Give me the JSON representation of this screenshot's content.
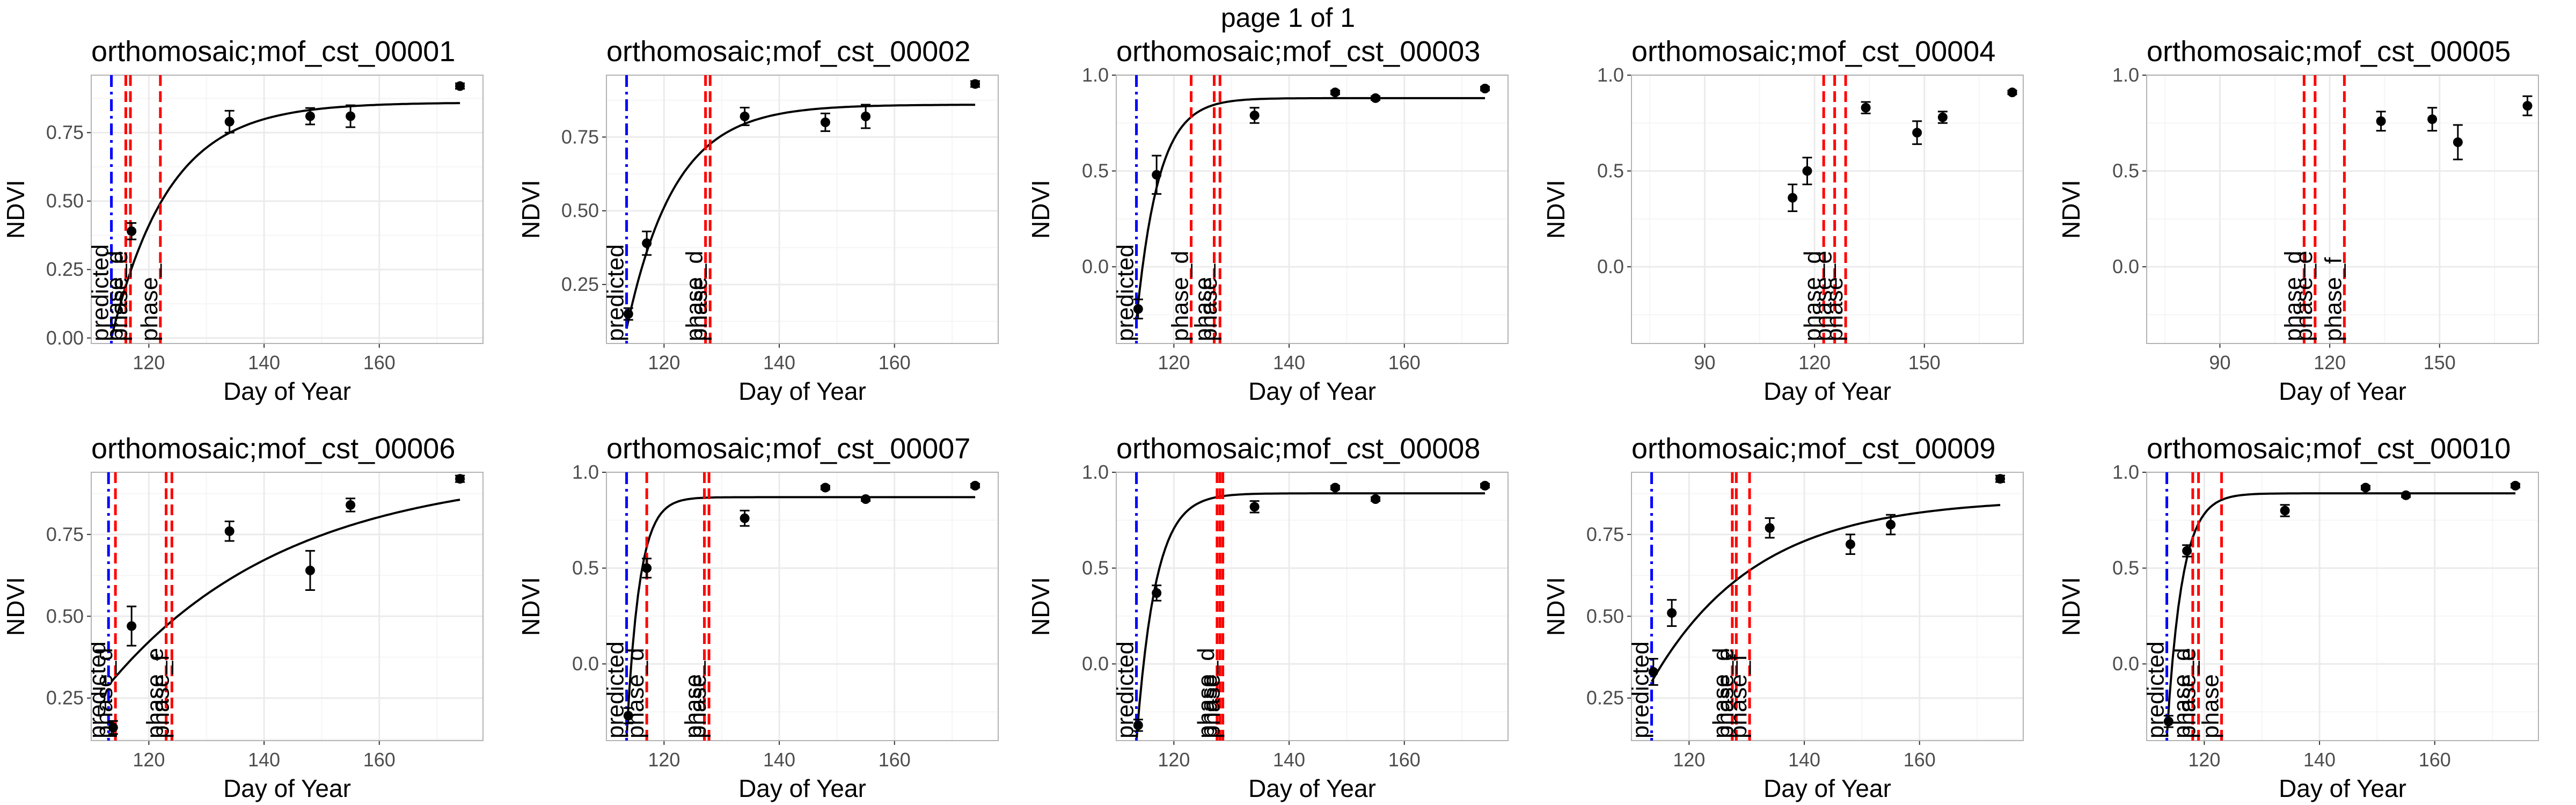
{
  "page": {
    "title": "page 1 of 1"
  },
  "colors": {
    "fit_curve": "#000000",
    "predicted_line": "#0000ff",
    "phase_line": "#ff0000",
    "points": "#000000",
    "grid_major": "#ebebeb",
    "grid_minor": "#f5f5f5",
    "panel_border": "#b3b3b3"
  },
  "chart_data": [
    {
      "type": "scatter",
      "title": "orthomosaic;mof_cst_00001",
      "xlabel": "Day of Year",
      "ylabel": "NDVI",
      "xlim": [
        110,
        178
      ],
      "ylim": [
        -0.02,
        0.96
      ],
      "xticks": [
        120,
        140,
        160
      ],
      "xtick_labels": [
        "120",
        "140",
        "160"
      ],
      "yticks": [
        0,
        0.25,
        0.5,
        0.75
      ],
      "ytick_labels": [
        "0.00",
        "0.25",
        "0.50",
        "0.75"
      ],
      "points": [
        {
          "x": 117,
          "y": 0.39,
          "err": 0.03
        },
        {
          "x": 134,
          "y": 0.79,
          "err": 0.04
        },
        {
          "x": 148,
          "y": 0.81,
          "err": 0.03
        },
        {
          "x": 155,
          "y": 0.81,
          "err": 0.04
        },
        {
          "x": 174,
          "y": 0.92,
          "err": 0.01
        }
      ],
      "fit": {
        "upper": 0.86,
        "rate": 0.1,
        "base": 0.0,
        "x0": 113.5,
        "xmax": 174
      },
      "vlines": [
        {
          "x": 113.5,
          "color": "#0000ff",
          "style": "dashdot",
          "label": "predicted"
        },
        {
          "x": 116,
          "color": "#ff0000",
          "style": "dashed",
          "label": "phase_d"
        },
        {
          "x": 116.8,
          "color": "#ff0000",
          "style": "dashed",
          "label": "phase_e"
        },
        {
          "x": 122,
          "color": "#ff0000",
          "style": "dashed",
          "label": "phase_"
        }
      ]
    },
    {
      "type": "scatter",
      "title": "orthomosaic;mof_cst_00002",
      "xlabel": "Day of Year",
      "ylabel": "NDVI",
      "xlim": [
        110,
        178
      ],
      "ylim": [
        0.05,
        0.96
      ],
      "xticks": [
        120,
        140,
        160
      ],
      "xtick_labels": [
        "120",
        "140",
        "160"
      ],
      "yticks": [
        0.25,
        0.5,
        0.75
      ],
      "ytick_labels": [
        "0.25",
        "0.50",
        "0.75"
      ],
      "points": [
        {
          "x": 113.8,
          "y": 0.15,
          "err": 0.02
        },
        {
          "x": 117,
          "y": 0.39,
          "err": 0.04
        },
        {
          "x": 134,
          "y": 0.82,
          "err": 0.03
        },
        {
          "x": 148,
          "y": 0.8,
          "err": 0.03
        },
        {
          "x": 155,
          "y": 0.82,
          "err": 0.04
        },
        {
          "x": 174,
          "y": 0.93,
          "err": 0.01
        }
      ],
      "fit": {
        "upper": 0.86,
        "rate": 0.12,
        "base": 0.1,
        "x0": 113.5,
        "xmax": 174
      },
      "vlines": [
        {
          "x": 113.5,
          "color": "#0000ff",
          "style": "dashdot",
          "label": "predicted"
        },
        {
          "x": 127.2,
          "color": "#ff0000",
          "style": "dashed",
          "label": "phase_d"
        },
        {
          "x": 128,
          "color": "#ff0000",
          "style": "dashed",
          "label": "phase"
        }
      ]
    },
    {
      "type": "scatter",
      "title": "orthomosaic;mof_cst_00003",
      "xlabel": "Day of Year",
      "ylabel": "NDVI",
      "xlim": [
        110,
        178
      ],
      "ylim": [
        -0.4,
        1.0
      ],
      "xticks": [
        120,
        140,
        160
      ],
      "xtick_labels": [
        "120",
        "140",
        "160"
      ],
      "yticks": [
        0,
        0.5,
        1.0
      ],
      "ytick_labels": [
        "0.0",
        "0.5",
        "1.0"
      ],
      "points": [
        {
          "x": 113.8,
          "y": -0.22,
          "err": 0.05
        },
        {
          "x": 117,
          "y": 0.48,
          "err": 0.1
        },
        {
          "x": 134,
          "y": 0.79,
          "err": 0.04
        },
        {
          "x": 148,
          "y": 0.91,
          "err": 0.01
        },
        {
          "x": 155,
          "y": 0.88,
          "err": 0.01
        },
        {
          "x": 174,
          "y": 0.93,
          "err": 0.01
        }
      ],
      "fit": {
        "upper": 0.88,
        "rate": 0.26,
        "base": -0.28,
        "x0": 113.5,
        "xmax": 174
      },
      "vlines": [
        {
          "x": 113.5,
          "color": "#0000ff",
          "style": "dashdot",
          "label": "predicted"
        },
        {
          "x": 123,
          "color": "#ff0000",
          "style": "dashed",
          "label": "phase_d"
        },
        {
          "x": 127,
          "color": "#ff0000",
          "style": "dashed",
          "label": "phase_"
        },
        {
          "x": 128,
          "color": "#ff0000",
          "style": "dashed",
          "label": "phase"
        }
      ]
    },
    {
      "type": "scatter",
      "title": "orthomosaic;mof_cst_00004",
      "xlabel": "Day of Year",
      "ylabel": "NDVI",
      "xlim": [
        70,
        177
      ],
      "ylim": [
        -0.4,
        1.0
      ],
      "xticks": [
        90,
        120,
        150
      ],
      "xtick_labels": [
        "90",
        "120",
        "150"
      ],
      "yticks": [
        0,
        0.5,
        1.0
      ],
      "ytick_labels": [
        "0.0",
        "0.5",
        "1.0"
      ],
      "points": [
        {
          "x": 114,
          "y": 0.36,
          "err": 0.07
        },
        {
          "x": 118,
          "y": 0.5,
          "err": 0.07
        },
        {
          "x": 134,
          "y": 0.83,
          "err": 0.03
        },
        {
          "x": 148,
          "y": 0.7,
          "err": 0.06
        },
        {
          "x": 155,
          "y": 0.78,
          "err": 0.03
        },
        {
          "x": 174,
          "y": 0.91,
          "err": 0.01
        }
      ],
      "vlines": [
        {
          "x": 122.5,
          "color": "#ff0000",
          "style": "dashed",
          "label": "phase_d"
        },
        {
          "x": 125.5,
          "color": "#ff0000",
          "style": "dashed",
          "label": "phase_e"
        },
        {
          "x": 128.5,
          "color": "#ff0000",
          "style": "dashed",
          "label": "phase"
        }
      ]
    },
    {
      "type": "scatter",
      "title": "orthomosaic;mof_cst_00005",
      "xlabel": "Day of Year",
      "ylabel": "NDVI",
      "xlim": [
        70,
        177
      ],
      "ylim": [
        -0.4,
        1.0
      ],
      "xticks": [
        90,
        120,
        150
      ],
      "xtick_labels": [
        "90",
        "120",
        "150"
      ],
      "yticks": [
        0,
        0.5,
        1.0
      ],
      "ytick_labels": [
        "0.0",
        "0.5",
        "1.0"
      ],
      "points": [
        {
          "x": 134,
          "y": 0.76,
          "err": 0.05
        },
        {
          "x": 148,
          "y": 0.77,
          "err": 0.06
        },
        {
          "x": 155,
          "y": 0.65,
          "err": 0.09
        },
        {
          "x": 174,
          "y": 0.84,
          "err": 0.05
        }
      ],
      "vlines": [
        {
          "x": 113,
          "color": "#ff0000",
          "style": "dashed",
          "label": "phase_d"
        },
        {
          "x": 116,
          "color": "#ff0000",
          "style": "dashed",
          "label": "phase_e"
        },
        {
          "x": 124,
          "color": "#ff0000",
          "style": "dashed",
          "label": "phase_f"
        }
      ]
    },
    {
      "type": "scatter",
      "title": "orthomosaic;mof_cst_00006",
      "xlabel": "Day of Year",
      "ylabel": "NDVI",
      "xlim": [
        110,
        178
      ],
      "ylim": [
        0.12,
        0.94
      ],
      "xticks": [
        120,
        140,
        160
      ],
      "xtick_labels": [
        "120",
        "140",
        "160"
      ],
      "yticks": [
        0.25,
        0.5,
        0.75
      ],
      "ytick_labels": [
        "0.25",
        "0.50",
        "0.75"
      ],
      "points": [
        {
          "x": 113.8,
          "y": 0.16,
          "err": 0.02
        },
        {
          "x": 117,
          "y": 0.47,
          "err": 0.06
        },
        {
          "x": 134,
          "y": 0.76,
          "err": 0.03
        },
        {
          "x": 148,
          "y": 0.64,
          "err": 0.06
        },
        {
          "x": 155,
          "y": 0.84,
          "err": 0.02
        },
        {
          "x": 174,
          "y": 0.92,
          "err": 0.01
        }
      ],
      "fit": {
        "upper": 0.95,
        "rate": 0.032,
        "base": 0.3,
        "x0": 113.5,
        "xmax": 174
      },
      "vlines": [
        {
          "x": 113,
          "color": "#0000ff",
          "style": "dashdot",
          "label": "predicted"
        },
        {
          "x": 114.2,
          "color": "#ff0000",
          "style": "dashed",
          "label": "phase_d"
        },
        {
          "x": 123,
          "color": "#ff0000",
          "style": "dashed",
          "label": "phase_e"
        },
        {
          "x": 124,
          "color": "#ff0000",
          "style": "dashed",
          "label": "phase_f"
        }
      ]
    },
    {
      "type": "scatter",
      "title": "orthomosaic;mof_cst_00007",
      "xlabel": "Day of Year",
      "ylabel": "NDVI",
      "xlim": [
        110,
        178
      ],
      "ylim": [
        -0.4,
        1.0
      ],
      "xticks": [
        120,
        140,
        160
      ],
      "xtick_labels": [
        "120",
        "140",
        "160"
      ],
      "yticks": [
        0,
        0.5,
        1.0
      ],
      "ytick_labels": [
        "0.0",
        "0.5",
        "1.0"
      ],
      "points": [
        {
          "x": 113.8,
          "y": -0.27,
          "err": 0.04
        },
        {
          "x": 117,
          "y": 0.5,
          "err": 0.05
        },
        {
          "x": 134,
          "y": 0.76,
          "err": 0.04
        },
        {
          "x": 148,
          "y": 0.92,
          "err": 0.01
        },
        {
          "x": 155,
          "y": 0.86,
          "err": 0.01
        },
        {
          "x": 174,
          "y": 0.93,
          "err": 0.01
        }
      ],
      "fit": {
        "upper": 0.87,
        "rate": 0.45,
        "base": -0.38,
        "x0": 113.5,
        "xmax": 174
      },
      "vlines": [
        {
          "x": 113.5,
          "color": "#0000ff",
          "style": "dashdot",
          "label": "predicted"
        },
        {
          "x": 117,
          "color": "#ff0000",
          "style": "dashed",
          "label": "phase_d"
        },
        {
          "x": 127,
          "color": "#ff0000",
          "style": "dashed",
          "label": "phase_"
        },
        {
          "x": 127.8,
          "color": "#ff0000",
          "style": "dashed",
          "label": "phase"
        }
      ]
    },
    {
      "type": "scatter",
      "title": "orthomosaic;mof_cst_00008",
      "xlabel": "Day of Year",
      "ylabel": "NDVI",
      "xlim": [
        110,
        178
      ],
      "ylim": [
        -0.4,
        1.0
      ],
      "xticks": [
        120,
        140,
        160
      ],
      "xtick_labels": [
        "120",
        "140",
        "160"
      ],
      "yticks": [
        0,
        0.5,
        1.0
      ],
      "ytick_labels": [
        "0.0",
        "0.5",
        "1.0"
      ],
      "points": [
        {
          "x": 113.8,
          "y": -0.32,
          "err": 0.03
        },
        {
          "x": 117,
          "y": 0.37,
          "err": 0.04
        },
        {
          "x": 134,
          "y": 0.82,
          "err": 0.03
        },
        {
          "x": 148,
          "y": 0.92,
          "err": 0.01
        },
        {
          "x": 155,
          "y": 0.86,
          "err": 0.01
        },
        {
          "x": 174,
          "y": 0.93,
          "err": 0.01
        }
      ],
      "fit": {
        "upper": 0.89,
        "rate": 0.3,
        "base": -0.4,
        "x0": 113.5,
        "xmax": 174
      },
      "vlines": [
        {
          "x": 113.5,
          "color": "#0000ff",
          "style": "dashdot",
          "label": "predicted"
        },
        {
          "x": 127.5,
          "color": "#ff0000",
          "style": "dashed",
          "label": "phase_d"
        },
        {
          "x": 128,
          "color": "#ff0000",
          "style": "dashed",
          "label": "phase"
        },
        {
          "x": 128.5,
          "color": "#ff0000",
          "style": "dashed",
          "label": "phase"
        }
      ]
    },
    {
      "type": "scatter",
      "title": "orthomosaic;mof_cst_00009",
      "xlabel": "Day of Year",
      "ylabel": "NDVI",
      "xlim": [
        110,
        178
      ],
      "ylim": [
        0.12,
        0.94
      ],
      "xticks": [
        120,
        140,
        160
      ],
      "xtick_labels": [
        "120",
        "140",
        "160"
      ],
      "yticks": [
        0.25,
        0.5,
        0.75
      ],
      "ytick_labels": [
        "0.25",
        "0.50",
        "0.75"
      ],
      "points": [
        {
          "x": 113.8,
          "y": 0.33,
          "err": 0.04
        },
        {
          "x": 117,
          "y": 0.51,
          "err": 0.04
        },
        {
          "x": 134,
          "y": 0.77,
          "err": 0.03
        },
        {
          "x": 148,
          "y": 0.72,
          "err": 0.03
        },
        {
          "x": 155,
          "y": 0.78,
          "err": 0.03
        },
        {
          "x": 174,
          "y": 0.92,
          "err": 0.01
        }
      ],
      "fit": {
        "upper": 0.86,
        "rate": 0.055,
        "base": 0.3,
        "x0": 113.5,
        "xmax": 174
      },
      "vlines": [
        {
          "x": 113.5,
          "color": "#0000ff",
          "style": "dashdot",
          "label": "predicted"
        },
        {
          "x": 127.5,
          "color": "#ff0000",
          "style": "dashed",
          "label": "phase_d"
        },
        {
          "x": 128.2,
          "color": "#ff0000",
          "style": "dashed",
          "label": "phase_e"
        },
        {
          "x": 130.5,
          "color": "#ff0000",
          "style": "dashed",
          "label": "phase_f"
        }
      ]
    },
    {
      "type": "scatter",
      "title": "orthomosaic;mof_cst_00010",
      "xlabel": "Day of Year",
      "ylabel": "NDVI",
      "xlim": [
        110,
        178
      ],
      "ylim": [
        -0.4,
        1.0
      ],
      "xticks": [
        120,
        140,
        160
      ],
      "xtick_labels": [
        "120",
        "140",
        "160"
      ],
      "yticks": [
        0,
        0.5,
        1.0
      ],
      "ytick_labels": [
        "0.0",
        "0.5",
        "1.0"
      ],
      "points": [
        {
          "x": 113.8,
          "y": -0.3,
          "err": 0.03
        },
        {
          "x": 117,
          "y": 0.59,
          "err": 0.03
        },
        {
          "x": 134,
          "y": 0.8,
          "err": 0.03
        },
        {
          "x": 148,
          "y": 0.92,
          "err": 0.01
        },
        {
          "x": 155,
          "y": 0.88,
          "err": 0.01
        },
        {
          "x": 174,
          "y": 0.93,
          "err": 0.01
        }
      ],
      "fit": {
        "upper": 0.89,
        "rate": 0.38,
        "base": -0.38,
        "x0": 113.5,
        "xmax": 174
      },
      "vlines": [
        {
          "x": 113.5,
          "color": "#0000ff",
          "style": "dashdot",
          "label": "predicted"
        },
        {
          "x": 118,
          "color": "#ff0000",
          "style": "dashed",
          "label": "phase_d"
        },
        {
          "x": 119,
          "color": "#ff0000",
          "style": "dashed",
          "label": "phase_e"
        },
        {
          "x": 123,
          "color": "#ff0000",
          "style": "dashed",
          "label": "phase"
        }
      ]
    }
  ]
}
